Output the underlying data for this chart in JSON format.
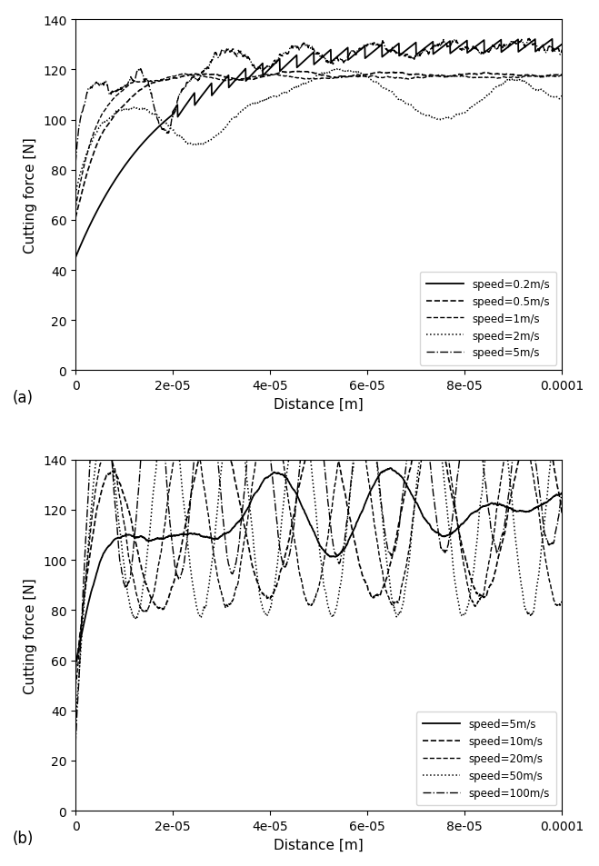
{
  "fig_width": 6.59,
  "fig_height": 9.54,
  "dpi": 100,
  "background_color": "#ffffff",
  "subplot_a": {
    "ylabel": "Cutting force [N]",
    "xlabel": "Distance [m]",
    "label": "(a)",
    "xlim": [
      0,
      0.0001
    ],
    "ylim": [
      0,
      140
    ],
    "yticks": [
      0,
      20,
      40,
      60,
      80,
      100,
      120,
      140
    ],
    "legend_labels": [
      "speed=0.2m/s",
      "speed=0.5m/s",
      "speed=1m/s",
      "speed=2m/s",
      "speed=5m/s"
    ]
  },
  "subplot_b": {
    "ylabel": "Cutting force [N]",
    "xlabel": "Distance [m]",
    "label": "(b)",
    "xlim": [
      0,
      0.0001
    ],
    "ylim": [
      0,
      140
    ],
    "yticks": [
      0,
      20,
      40,
      60,
      80,
      100,
      120,
      140
    ],
    "legend_labels": [
      "speed=5m/s",
      "speed=10m/s",
      "speed=20m/s",
      "speed=50m/s",
      "speed=100m/s"
    ]
  }
}
